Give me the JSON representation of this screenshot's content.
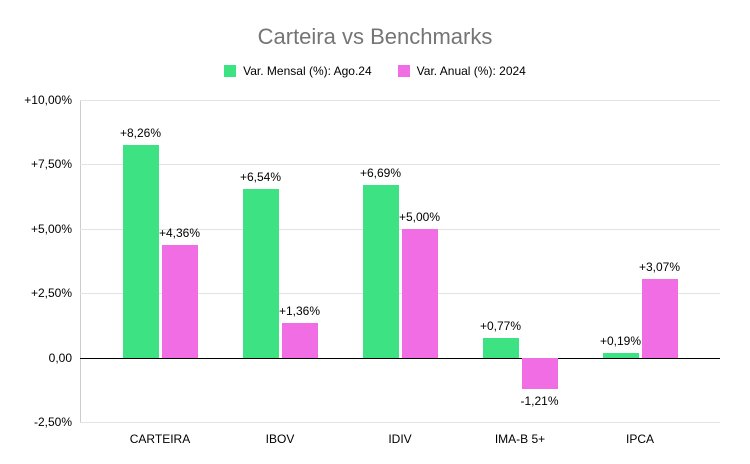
{
  "chart_data": {
    "type": "bar",
    "title": "Carteira vs Benchmarks",
    "categories": [
      "CARTEIRA",
      "IBOV",
      "IDIV",
      "IMA-B 5+",
      "IPCA"
    ],
    "series": [
      {
        "name": "Var. Mensal (%): Ago.24",
        "color": "#3de383",
        "values": [
          8.26,
          6.54,
          6.69,
          0.77,
          0.19
        ],
        "labels": [
          "+8,26%",
          "+6,54%",
          "+6,69%",
          "+0,77%",
          "+0,19%"
        ]
      },
      {
        "name": "Var. Anual (%): 2024",
        "color": "#f16de4",
        "values": [
          4.36,
          1.36,
          5.0,
          -1.21,
          3.07
        ],
        "labels": [
          "+4,36%",
          "+1,36%",
          "+5,00%",
          "-1,21%",
          "+3,07%"
        ]
      }
    ],
    "y_axis": {
      "min": -2.5,
      "max": 10,
      "tick_interval": 2.5,
      "tick_labels": [
        "-2,50%",
        "0,00",
        "+2,50%",
        "+5,00%",
        "+7,50%",
        "+10,00%"
      ]
    },
    "grid": true,
    "legend_position": "top"
  }
}
